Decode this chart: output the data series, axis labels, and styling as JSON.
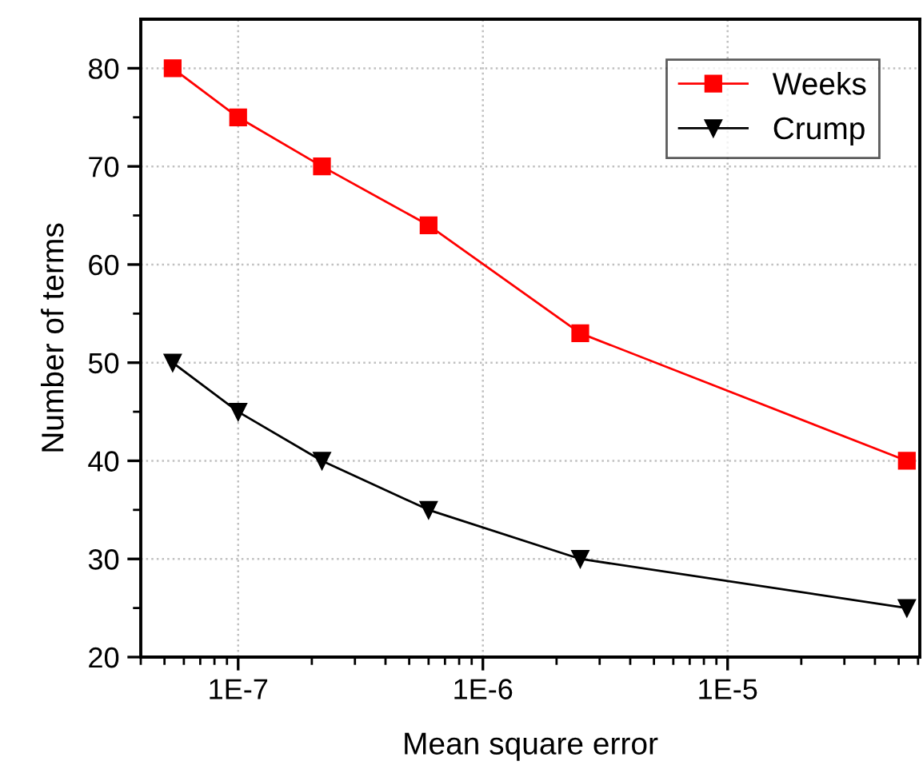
{
  "chart_data": {
    "type": "line",
    "xlabel": "Mean square error",
    "ylabel": "Number of terms",
    "x": [
      5.4e-08,
      1e-07,
      2.2e-07,
      6e-07,
      2.5e-06,
      5.4e-05
    ],
    "series": [
      {
        "name": "Weeks",
        "color": "#ff0000",
        "marker": "square",
        "values": [
          80,
          75,
          70,
          64,
          53,
          40
        ]
      },
      {
        "name": "Crump",
        "color": "#000000",
        "marker": "triangle",
        "values": [
          50,
          45,
          40,
          35,
          30,
          25
        ]
      }
    ],
    "log": "x",
    "xlim": [
      4e-08,
      6.1e-05
    ],
    "xticks": [
      {
        "value": 1e-07,
        "label": "1E-7"
      },
      {
        "value": 1e-06,
        "label": "1E-6"
      },
      {
        "value": 1e-05,
        "label": "1E-5"
      }
    ],
    "ylim": [
      20,
      85
    ],
    "yticks": [
      20,
      30,
      40,
      50,
      60,
      70,
      80
    ],
    "grid": true,
    "legend": "top right",
    "line_style": "solid"
  }
}
